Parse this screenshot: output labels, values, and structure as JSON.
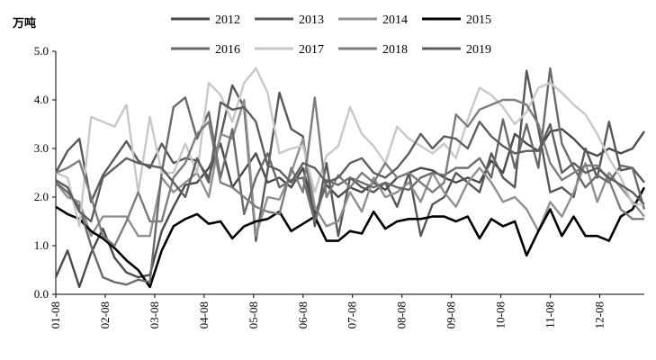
{
  "chart_data": {
    "type": "line",
    "unit_label": "万吨",
    "ylim": [
      0,
      5
    ],
    "yticks": [
      "0.0",
      "1.0",
      "2.0",
      "3.0",
      "4.0",
      "5.0"
    ],
    "x_tick_labels": [
      "01-08",
      "02-08",
      "03-08",
      "04-08",
      "05-08",
      "06-08",
      "07-08",
      "08-08",
      "09-08",
      "10-08",
      "11-08",
      "12-08"
    ],
    "grid": false,
    "legend_position": "top",
    "series": [
      {
        "name": "2012",
        "color": "#4a4a4a",
        "values": [
          0.35,
          0.9,
          0.15,
          0.85,
          1.35,
          0.75,
          0.45,
          0.35,
          0.4,
          1.3,
          1.8,
          2.25,
          2.3,
          2.6,
          3.1,
          2.2,
          2.55,
          2.9,
          2.3,
          2.4,
          2.2,
          2.6,
          1.65,
          2.25,
          2.0,
          2.2,
          2.1,
          2.3,
          2.15,
          2.4,
          2.5,
          2.6,
          2.55,
          2.4,
          2.3,
          2.4,
          2.3,
          2.75,
          2.5,
          3.3,
          3.1,
          2.95,
          3.35,
          3.4,
          3.2,
          2.95,
          2.85,
          3.0,
          2.9,
          3.0,
          3.35
        ]
      },
      {
        "name": "2013",
        "color": "#585858",
        "values": [
          2.5,
          2.95,
          3.2,
          1.9,
          2.45,
          2.8,
          3.15,
          2.75,
          2.6,
          3.1,
          2.7,
          2.8,
          2.75,
          2.4,
          3.25,
          4.3,
          3.85,
          1.1,
          2.55,
          4.15,
          3.4,
          3.25,
          1.4,
          2.7,
          1.2,
          2.4,
          2.2,
          2.1,
          2.3,
          1.8,
          2.5,
          1.2,
          1.85,
          2.0,
          2.5,
          2.3,
          2.1,
          2.9,
          2.4,
          2.2,
          4.6,
          3.4,
          2.1,
          2.2,
          2.0,
          3.0,
          2.4,
          3.55,
          2.55,
          2.6,
          2.3
        ]
      },
      {
        "name": "2014",
        "color": "#909090",
        "values": [
          2.3,
          2.0,
          1.9,
          1.2,
          1.6,
          1.6,
          1.6,
          1.2,
          1.2,
          2.4,
          2.1,
          2.3,
          2.5,
          2.0,
          3.3,
          3.2,
          4.0,
          1.2,
          2.0,
          1.95,
          2.5,
          3.2,
          1.8,
          1.4,
          1.5,
          2.1,
          1.7,
          2.4,
          2.0,
          2.1,
          2.3,
          1.9,
          2.5,
          2.1,
          1.8,
          2.3,
          2.6,
          2.3,
          1.9,
          2.0,
          1.75,
          1.3,
          1.9,
          1.6,
          2.1,
          2.7,
          1.9,
          2.5,
          2.2,
          1.9,
          1.6
        ]
      },
      {
        "name": "2015",
        "color": "#000000",
        "values": [
          1.8,
          1.65,
          1.55,
          1.3,
          1.15,
          0.95,
          0.7,
          0.5,
          0.15,
          0.9,
          1.4,
          1.55,
          1.65,
          1.45,
          1.5,
          1.15,
          1.4,
          1.5,
          1.55,
          1.7,
          1.3,
          1.45,
          1.6,
          1.1,
          1.1,
          1.3,
          1.25,
          1.7,
          1.35,
          1.5,
          1.55,
          1.55,
          1.6,
          1.6,
          1.5,
          1.6,
          1.15,
          1.55,
          1.4,
          1.5,
          0.8,
          1.3,
          1.75,
          1.2,
          1.6,
          1.2,
          1.2,
          1.1,
          1.6,
          1.75,
          2.2
        ]
      },
      {
        "name": "2016",
        "color": "#6a6a6a",
        "values": [
          2.3,
          2.1,
          1.8,
          1.0,
          0.35,
          0.25,
          0.2,
          0.3,
          0.25,
          2.5,
          3.85,
          4.05,
          3.2,
          3.75,
          2.4,
          3.4,
          1.65,
          2.4,
          2.9,
          2.2,
          2.35,
          2.4,
          1.5,
          2.35,
          2.25,
          2.4,
          2.3,
          2.2,
          2.3,
          2.2,
          2.15,
          2.4,
          2.5,
          2.45,
          2.6,
          2.6,
          2.8,
          2.4,
          3.6,
          2.6,
          3.5,
          2.6,
          4.65,
          3.1,
          2.6,
          2.2,
          2.45,
          2.3,
          2.65,
          2.6,
          1.75
        ]
      },
      {
        "name": "2017",
        "color": "#c8c8c8",
        "values": [
          2.5,
          2.4,
          1.4,
          3.65,
          3.55,
          3.45,
          3.9,
          2.1,
          3.65,
          2.5,
          2.5,
          3.1,
          2.5,
          4.35,
          4.1,
          3.55,
          4.35,
          4.65,
          4.15,
          2.9,
          3.0,
          3.05,
          2.1,
          2.85,
          3.05,
          3.85,
          3.3,
          3.05,
          2.7,
          3.45,
          3.2,
          3.05,
          2.9,
          3.1,
          2.8,
          3.6,
          4.25,
          4.1,
          3.85,
          3.5,
          3.75,
          4.25,
          4.35,
          4.15,
          3.9,
          3.7,
          3.3,
          2.8,
          2.4,
          1.85,
          1.85
        ]
      },
      {
        "name": "2018",
        "color": "#7d7d7d",
        "values": [
          2.5,
          2.6,
          2.75,
          2.0,
          1.2,
          1.0,
          1.5,
          2.1,
          1.5,
          1.5,
          2.4,
          2.7,
          3.3,
          3.55,
          2.3,
          2.2,
          2.0,
          1.8,
          1.7,
          1.65,
          2.6,
          2.1,
          4.05,
          2.0,
          2.45,
          2.2,
          2.5,
          2.3,
          2.7,
          2.4,
          2.5,
          2.3,
          2.1,
          2.3,
          3.7,
          3.45,
          3.8,
          3.9,
          4.0,
          4.0,
          3.9,
          3.5,
          2.7,
          2.35,
          2.5,
          2.65,
          2.65,
          2.35,
          1.75,
          1.55,
          1.55
        ]
      },
      {
        "name": "2019",
        "color": "#5e5e5e",
        "values": [
          2.35,
          2.2,
          1.7,
          1.5,
          2.4,
          2.6,
          2.8,
          2.7,
          2.65,
          2.6,
          2.3,
          2.0,
          2.8,
          2.3,
          3.95,
          3.8,
          3.85,
          3.55,
          2.65,
          2.55,
          2.3,
          2.7,
          2.6,
          2.3,
          2.4,
          2.7,
          2.8,
          2.5,
          2.4,
          2.6,
          2.9,
          3.3,
          3.0,
          3.25,
          3.2,
          3.0,
          3.55,
          3.25,
          3.05,
          2.9,
          2.95,
          2.95,
          3.5,
          2.5,
          2.7,
          2.5,
          2.6,
          2.4,
          2.25,
          2.1,
          1.85
        ]
      }
    ]
  }
}
